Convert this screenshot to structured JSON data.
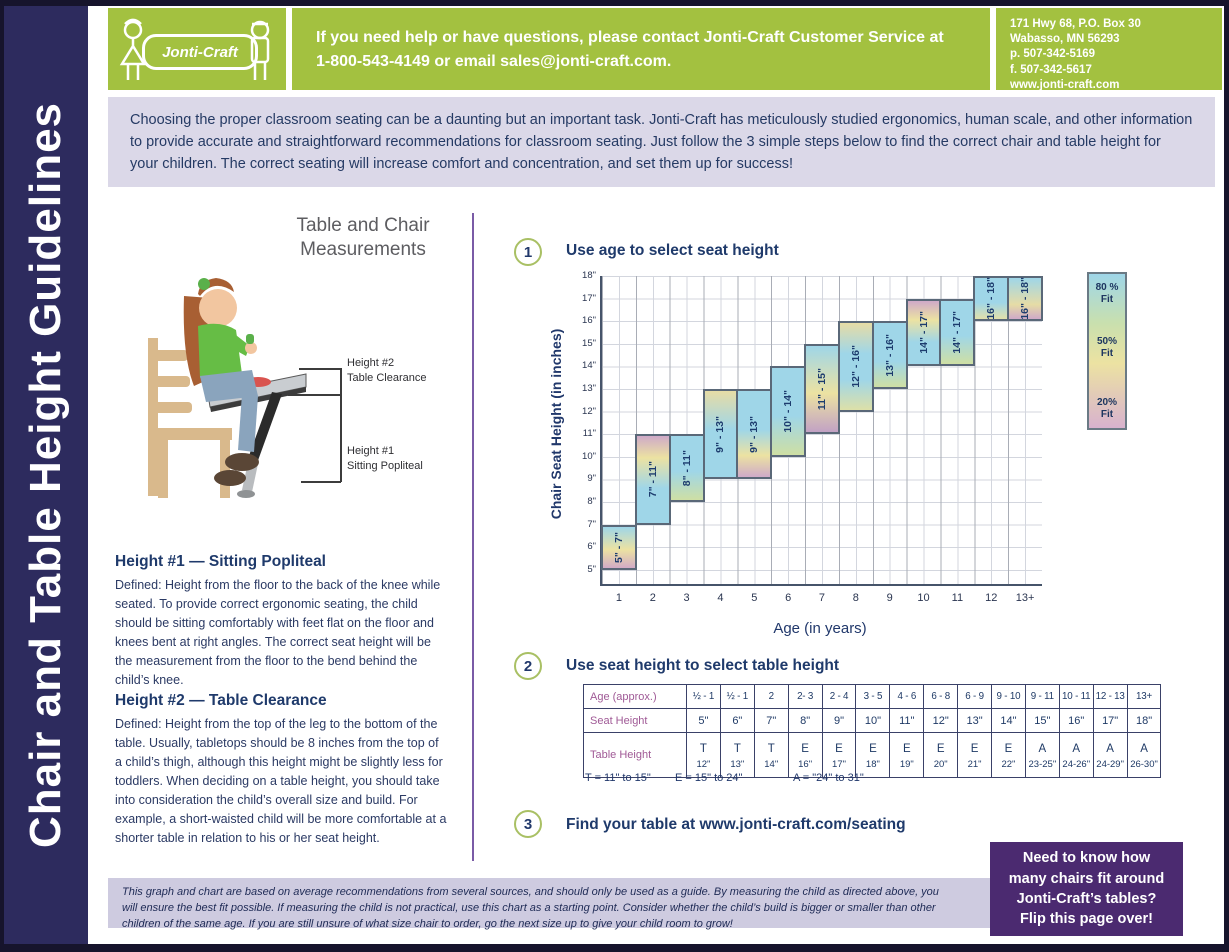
{
  "page": {
    "title_vertical": "Chair and Table Height Guidelines"
  },
  "header": {
    "logo_text": "Jonti-Craft",
    "help_line1": "If you need help or have questions, please contact Jonti-Craft Customer Service at",
    "help_line2": "1-800-543-4149 or email sales@jonti-craft.com.",
    "address_lines": [
      "171 Hwy 68, P.O. Box 30",
      "Wabasso, MN 56293",
      "p. 507-342-5169",
      "f. 507-342-5617",
      "www.jonti-craft.com"
    ]
  },
  "intro": "Choosing the proper classroom seating can be a daunting but an important task. Jonti-Craft has meticulously studied ergonomics, human scale, and other information to provide accurate and straightforward recommendations for classroom seating. Just follow the 3 simple steps below to find the correct chair and table height for your children. The correct seating will increase comfort and concentration, and set them up for success!",
  "measurements": {
    "title_line1": "Table and Chair",
    "title_line2": "Measurements",
    "label2_line1": "Height #2",
    "label2_line2": "Table Clearance",
    "label1_line1": "Height #1",
    "label1_line2": "Sitting Popliteal"
  },
  "height1": {
    "heading": "Height #1 — Sitting Popliteal",
    "body": "Defined: Height from the floor to the back of the knee while seated. To provide correct ergonomic seating, the child should be sitting comfortably with feet flat on the floor and knees bent at right angles. The correct seat height will be the measurement from the floor to the bend behind the child’s knee."
  },
  "height2": {
    "heading": "Height #2 — Table Clearance",
    "body": "Defined: Height from the top of the leg to the bottom of the table. Usually, tabletops should be 8 inches from the top of a child’s thigh, although this height might be slightly less for toddlers. When deciding on a table height,  you should take into consideration the child’s overall size and build. For example, a short-waisted child will be more comfortable at a shorter table in relation to his or her seat height."
  },
  "steps": [
    {
      "number": "1",
      "label": "Use age to select seat height"
    },
    {
      "number": "2",
      "label": "Use seat height to select table height"
    },
    {
      "number": "3",
      "label": "Find your table at www.jonti-craft.com/seating"
    }
  ],
  "chart_data": {
    "type": "bar",
    "title": "Use age to select seat height",
    "xlabel": "Age (in years)",
    "ylabel": "Chair Seat Height  (in inches)",
    "categories": [
      "1",
      "2",
      "3",
      "4",
      "5",
      "6",
      "7",
      "8",
      "9",
      "10",
      "11",
      "12",
      "13+"
    ],
    "yticks": [
      "5\"",
      "6\"",
      "7\"",
      "8\"",
      "9\"",
      "10\"",
      "11\"",
      "12\"",
      "13\"",
      "14\"",
      "15\"",
      "16\"",
      "17\"",
      "18\""
    ],
    "ylim": [
      4.4,
      18
    ],
    "grid": true,
    "bars": [
      {
        "age": "1",
        "range": "5\" - 7\"",
        "min": 5,
        "max": 7,
        "gradient": "linear-gradient(to bottom, #9fd6e8 0%, #ece2a2 55%, #d2aac6 100%)"
      },
      {
        "age": "2",
        "range": "7\" - 11\"",
        "min": 7,
        "max": 11,
        "gradient": "linear-gradient(to bottom, #cfaac8 0%, #ece2a2 25%, #9fd6e8 60%)"
      },
      {
        "age": "3",
        "range": "8\" - 11\"",
        "min": 8,
        "max": 11,
        "gradient": "linear-gradient(to bottom, #9fd6e8 0%, #9fd6e8 55%, #cedfa4 100%)"
      },
      {
        "age": "4",
        "range": "9\" - 13\"",
        "min": 9,
        "max": 13,
        "gradient": "linear-gradient(to bottom, #e6dca6 0%, #9fd6e8 45%, #9fd6e8 100%)"
      },
      {
        "age": "5",
        "range": "9\" - 13\"",
        "min": 9,
        "max": 13,
        "gradient": "linear-gradient(to bottom, #9fd6e8 0%, #9fd6e8 45%, #ece2a2 75%, #cfaac8 100%)"
      },
      {
        "age": "6",
        "range": "10\" - 14\"",
        "min": 10,
        "max": 14,
        "gradient": "linear-gradient(to bottom, #9fd6e8 0%, #9fd6e8 55%, #cedfa4 100%)"
      },
      {
        "age": "7",
        "range": "11\" - 15\"",
        "min": 11,
        "max": 15,
        "gradient": "linear-gradient(to bottom, #9fd6e8 0%, #ece2a2 55%, #c2a2c4 100%)"
      },
      {
        "age": "8",
        "range": "12\" - 16\"",
        "min": 12,
        "max": 16,
        "gradient": "linear-gradient(to bottom, #e6dca6 0%, #9fd6e8 35%, #9fd6e8 65%, #dde0a8 100%)"
      },
      {
        "age": "9",
        "range": "13\" - 16\"",
        "min": 13,
        "max": 16,
        "gradient": "linear-gradient(to bottom, #9fd6e8 0%, #9fd6e8 60%, #cedfa4 100%)"
      },
      {
        "age": "10",
        "range": "14\" - 17\"",
        "min": 14,
        "max": 17,
        "gradient": "linear-gradient(to bottom, #cfaac8 0%, #ece2a2 30%, #9fd6e8 65%)"
      },
      {
        "age": "11",
        "range": "14\" - 17\"",
        "min": 14,
        "max": 17,
        "gradient": "linear-gradient(to bottom, #9fd6e8 0%, #9fd6e8 55%, #cedfa4 100%)"
      },
      {
        "age": "12",
        "range": "16\" - 18\"",
        "min": 16,
        "max": 18,
        "gradient": "linear-gradient(to bottom, #9fd6e8 0%, #9fd6e8 60%, #e2e0aa 100%)"
      },
      {
        "age": "13+",
        "range": "16\" - 18\"",
        "min": 16,
        "max": 18,
        "gradient": "linear-gradient(to bottom, #9fd6e8 0%, #e6dca6 65%, #cfaac8 100%)"
      }
    ],
    "legend_position": "right",
    "legend_gradient": "linear-gradient(to bottom, #9fd6e8 0%, #c9e0ae 32%, #ece2a2 58%, #d8b2ce 100%)",
    "legend_items": [
      {
        "pct": "80 %",
        "word": "Fit"
      },
      {
        "pct": "50%",
        "word": "Fit"
      },
      {
        "pct": "20%",
        "word": "Fit"
      }
    ]
  },
  "table2": {
    "rows": [
      {
        "label": "Age (approx.)",
        "values": [
          "½ - 1",
          "½ - 1",
          "2",
          "2- 3",
          "2 - 4",
          "3 - 5",
          "4 - 6",
          "6 - 8",
          "6 - 9",
          "9 - 10",
          "9 - 11",
          "10 - 11",
          "12 - 13",
          "13+"
        ]
      },
      {
        "label": "Seat Height",
        "values": [
          "5\"",
          "6\"",
          "7\"",
          "8\"",
          "9\"",
          "10\"",
          "11\"",
          "12\"",
          "13\"",
          "14\"",
          "15\"",
          "16\"",
          "17\"",
          "18\""
        ]
      },
      {
        "label": "Table Height",
        "letters": [
          "T",
          "T",
          "T",
          "E",
          "E",
          "E",
          "E",
          "E",
          "E",
          "E",
          "A",
          "A",
          "A",
          "A"
        ],
        "sizes": [
          "12\"",
          "13\"",
          "14\"",
          "16\"",
          "17\"",
          "18\"",
          "19\"",
          "20\"",
          "21\"",
          "22\"",
          "23-25\"",
          "24-26\"",
          "24-29\"",
          "26-30\""
        ]
      }
    ],
    "footnote_t": "T = 11\" to 15\"",
    "footnote_e": "E = 15\" to 24\"",
    "footnote_a": "A = \"24\" to 31\""
  },
  "footer": {
    "disclaimer": "This graph and chart are based on average recommendations from several sources, and should only be used as a guide. By measuring the child as directed above, you will ensure the best fit possible. If measuring the child is not practical, use this chart as a starting point. Consider whether the child’s build is bigger or smaller than other children of the same age. If you are still unsure of what size chair to order, go the next size up to give your child room to grow!",
    "flip_line1": "Need to know how",
    "flip_line2": "many chairs fit around",
    "flip_line3": "Jonti-Craft’s tables?",
    "flip_line4": "Flip this page over!"
  },
  "colors": {
    "green": "#a3c140",
    "navy_sidebar": "#2d2b5e",
    "navy_text": "#1f3a6b",
    "lavender": "#dbd8e8",
    "purple_box": "#4b2a70",
    "purple_divider": "#7a5ba6",
    "row_label_purple": "#a05a96",
    "bar_blue": "#9fd6e8",
    "bar_yellow": "#ece2a2",
    "bar_pink": "#cfaac8"
  }
}
